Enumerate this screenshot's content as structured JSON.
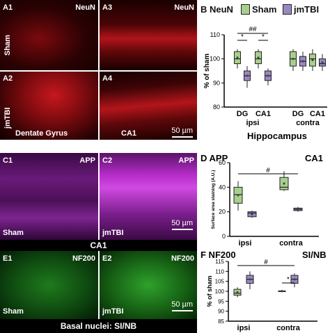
{
  "panels": {
    "A1": {
      "label": "A1",
      "stain": "NeuN",
      "group": "Sham",
      "color": "#c0141a"
    },
    "A3": {
      "label": "A3",
      "stain": "NeuN"
    },
    "A2": {
      "label": "A2",
      "group": "jmTBI",
      "region": "Dentate Gyrus"
    },
    "A4": {
      "label": "A4",
      "region": "CA1",
      "scale": "50 µm"
    },
    "C1": {
      "label": "C1",
      "stain": "APP",
      "group": "Sham",
      "color": "#b81fd0"
    },
    "C2": {
      "label": "C2",
      "stain": "APP",
      "group": "jmTBI",
      "scale": "50 µm"
    },
    "C_region": "CA1",
    "E1": {
      "label": "E1",
      "stain": "NF200",
      "group": "Sham",
      "color": "#27a324"
    },
    "E2": {
      "label": "E2",
      "stain": "NF200",
      "group": "jmTBI",
      "scale": "50 µm"
    },
    "E_region": "Basal nuclei: SI/NB"
  },
  "legend": {
    "sham": "Sham",
    "jmtbi": "jmTBI",
    "sham_color": "#a8d08d",
    "jmtbi_color": "#9b88c2"
  },
  "chart_data": [
    {
      "panel": "B",
      "title": "B NeuN",
      "type": "box",
      "ylabel": "% of sham",
      "ylim": [
        80,
        110
      ],
      "yticks": [
        80,
        90,
        100,
        110
      ],
      "categories": [
        "DG",
        "CA1",
        "DG",
        "CA1"
      ],
      "groups": [
        "ipsi",
        "contra"
      ],
      "xlabel": "Hippocampus",
      "series": [
        {
          "name": "Sham",
          "boxes": [
            {
              "min": 96,
              "q1": 98,
              "med": 100,
              "q3": 103,
              "max": 104
            },
            {
              "min": 96,
              "q1": 98,
              "med": 100,
              "q3": 103,
              "max": 104
            },
            {
              "min": 95,
              "q1": 97,
              "med": 100,
              "q3": 103,
              "max": 104
            },
            {
              "min": 95,
              "q1": 97,
              "med": 100,
              "q3": 102,
              "max": 104
            }
          ]
        },
        {
          "name": "jmTBI",
          "boxes": [
            {
              "min": 88,
              "q1": 91,
              "med": 93,
              "q3": 95,
              "max": 97
            },
            {
              "min": 89,
              "q1": 91,
              "med": 93,
              "q3": 95,
              "max": 96
            },
            {
              "min": 95,
              "q1": 97,
              "med": 99,
              "q3": 101,
              "max": 103
            },
            {
              "min": 95,
              "q1": 97,
              "med": 98,
              "q3": 100,
              "max": 102
            }
          ]
        }
      ],
      "annotations": [
        "*",
        "##",
        "*"
      ]
    },
    {
      "panel": "D",
      "title": "D APP",
      "region": "CA1",
      "type": "box",
      "ylabel": "Surface area staining (A.U.)",
      "ylim": [
        0,
        60
      ],
      "yticks": [
        0,
        20,
        40,
        60
      ],
      "categories": [
        "ipsi",
        "contra"
      ],
      "series": [
        {
          "name": "Sham",
          "boxes": [
            {
              "min": 21,
              "q1": 27,
              "med": 34,
              "q3": 40,
              "max": 45
            },
            {
              "min": 37,
              "q1": 38,
              "med": 40,
              "q3": 48,
              "max": 53
            }
          ]
        },
        {
          "name": "jmTBI",
          "boxes": [
            {
              "min": 15,
              "q1": 16,
              "med": 19,
              "q3": 20,
              "max": 21
            },
            {
              "min": 20,
              "q1": 21,
              "med": 22,
              "q3": 23,
              "max": 24
            }
          ]
        }
      ],
      "annotations": [
        "#"
      ]
    },
    {
      "panel": "F",
      "title": "F NF200",
      "region": "SI/NB",
      "type": "box",
      "ylabel": "% of sham",
      "ylim": [
        85,
        115
      ],
      "yticks": [
        85,
        90,
        95,
        100,
        105,
        110,
        115
      ],
      "categories": [
        "ipsi",
        "contra"
      ],
      "series": [
        {
          "name": "Sham",
          "boxes": [
            {
              "min": 97,
              "q1": 98,
              "med": 99,
              "q3": 101,
              "max": 102
            },
            {
              "min": 99.5,
              "q1": 100,
              "med": 100,
              "q3": 100.2,
              "max": 100.5
            }
          ]
        },
        {
          "name": "jmTBI",
          "boxes": [
            {
              "min": 101,
              "q1": 104,
              "med": 106,
              "q3": 108,
              "max": 110
            },
            {
              "min": 102,
              "q1": 104,
              "med": 106,
              "q3": 108,
              "max": 109
            }
          ]
        }
      ],
      "annotations": [
        "#",
        "*"
      ]
    }
  ]
}
